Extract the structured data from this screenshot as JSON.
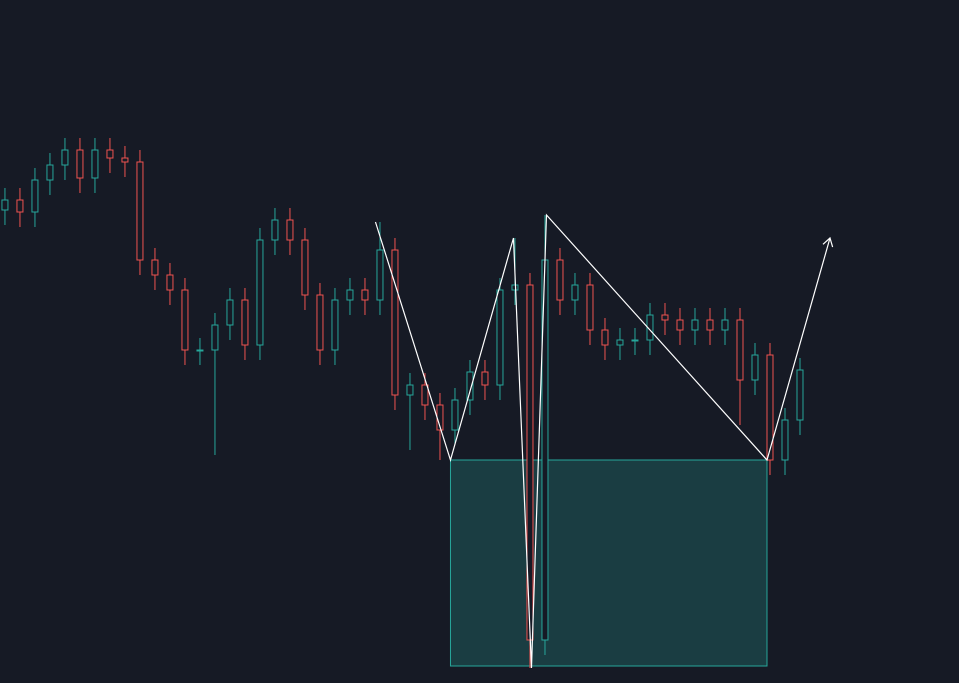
{
  "chart_data": {
    "type": "candlestick",
    "background": "#161a25",
    "up_color": "#26a69a",
    "down_color": "#ef5350",
    "xlim": [
      -0.33,
      63.6
    ],
    "ylim": [
      317,
      1000
    ],
    "open": [
      790,
      800,
      788,
      820,
      835,
      850,
      822,
      850,
      842,
      838,
      740,
      725,
      710,
      650,
      650,
      675,
      700,
      655,
      760,
      780,
      760,
      705,
      650,
      700,
      710,
      700,
      750,
      605,
      615,
      595,
      570,
      600,
      628,
      615,
      710,
      715,
      360,
      740,
      700,
      715,
      670,
      655,
      660,
      660,
      685,
      680,
      670,
      680,
      670,
      680,
      620,
      645,
      540,
      580
    ],
    "high": [
      812,
      812,
      832,
      847,
      862,
      862,
      862,
      862,
      854,
      850,
      752,
      737,
      722,
      662,
      687,
      712,
      712,
      772,
      792,
      792,
      772,
      717,
      712,
      722,
      722,
      778,
      762,
      627,
      627,
      607,
      612,
      640,
      640,
      722,
      762,
      727,
      785,
      752,
      727,
      727,
      682,
      672,
      672,
      697,
      697,
      692,
      692,
      692,
      692,
      692,
      657,
      657,
      592,
      642
    ],
    "low": [
      775,
      773,
      773,
      805,
      820,
      807,
      807,
      827,
      823,
      725,
      710,
      695,
      635,
      635,
      545,
      660,
      640,
      640,
      745,
      745,
      690,
      635,
      635,
      685,
      685,
      685,
      590,
      550,
      580,
      540,
      555,
      585,
      600,
      600,
      695,
      332,
      345,
      685,
      685,
      655,
      640,
      640,
      645,
      645,
      665,
      655,
      655,
      655,
      655,
      575,
      605,
      525,
      525,
      565
    ],
    "close": [
      800,
      788,
      820,
      835,
      850,
      822,
      850,
      842,
      838,
      740,
      725,
      710,
      650,
      650,
      675,
      700,
      655,
      760,
      780,
      760,
      705,
      650,
      700,
      710,
      700,
      750,
      605,
      615,
      595,
      570,
      600,
      628,
      615,
      710,
      715,
      360,
      740,
      700,
      715,
      670,
      655,
      660,
      660,
      685,
      680,
      670,
      680,
      670,
      680,
      620,
      645,
      540,
      580,
      630
    ],
    "zigzag": {
      "color": "#ffffff",
      "x": [
        24.7,
        29.7,
        33.9,
        35.1,
        36.1,
        50.8,
        55.0
      ],
      "values": [
        778,
        540,
        762,
        332,
        785,
        540,
        762
      ]
    },
    "zone": {
      "color": "#26a69a",
      "x": [
        29.7,
        50.8
      ],
      "values": [
        334,
        540
      ]
    }
  }
}
